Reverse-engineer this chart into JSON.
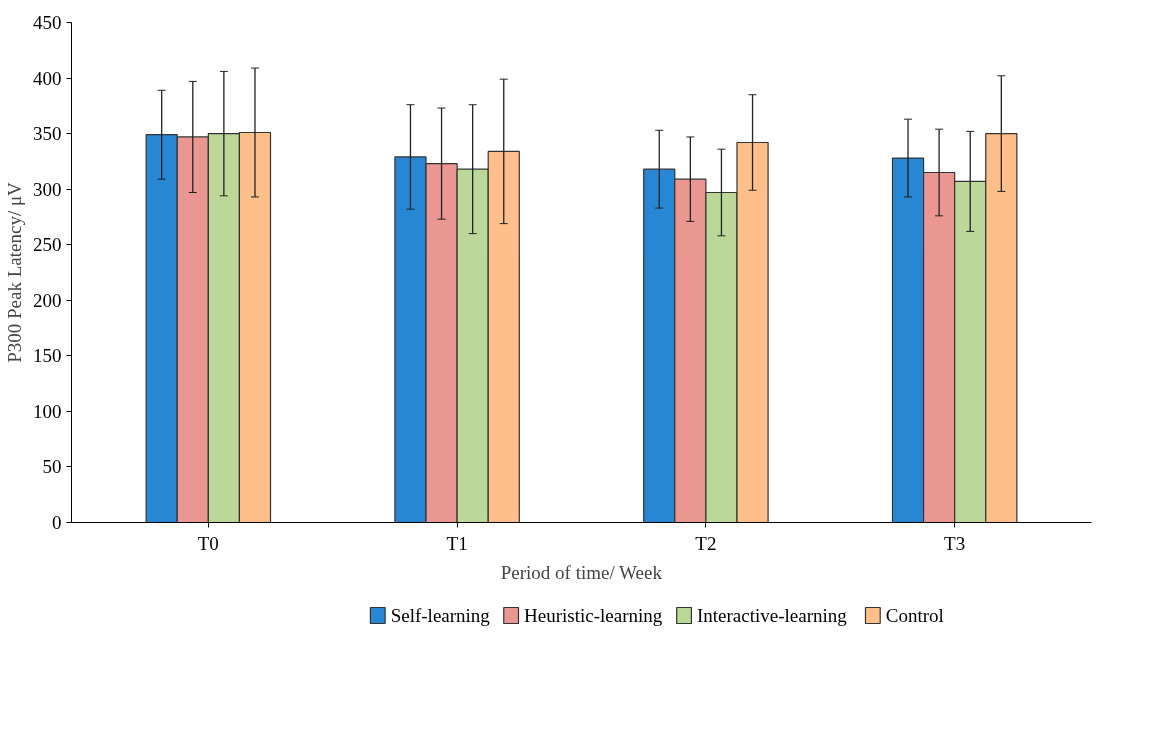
{
  "chart_data": {
    "type": "bar",
    "xlabel": "Period of time/ Week",
    "ylabel": "P300 Peak Latency/ μV",
    "categories": [
      "T0",
      "T1",
      "T2",
      "T3"
    ],
    "ylim": [
      0,
      450
    ],
    "yticks": [
      0,
      50,
      100,
      150,
      200,
      250,
      300,
      350,
      400,
      450
    ],
    "grid": false,
    "legend": "bottom",
    "series": [
      {
        "name": "Self-learning",
        "color": "#2787d4",
        "values": [
          349,
          329,
          318,
          328
        ],
        "errors": [
          40,
          47,
          35,
          35
        ]
      },
      {
        "name": "Heuristic-learning",
        "color": "#ea9791",
        "values": [
          347,
          323,
          309,
          315
        ],
        "errors": [
          50,
          50,
          38,
          39
        ]
      },
      {
        "name": "Interactive-learning",
        "color": "#bcd898",
        "values": [
          350,
          318,
          297,
          307
        ],
        "errors": [
          56,
          58,
          39,
          45
        ]
      },
      {
        "name": "Control",
        "color": "#ffbf8a",
        "values": [
          351,
          334,
          342,
          350
        ],
        "errors": [
          58,
          65,
          43,
          52
        ]
      }
    ]
  }
}
